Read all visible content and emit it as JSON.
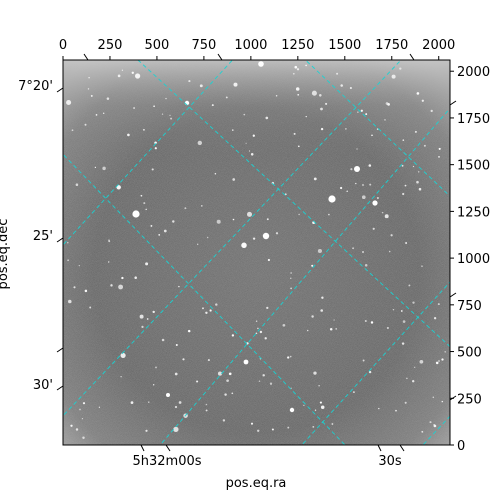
{
  "chart_data": {
    "type": "image",
    "pixel_axes": {
      "x_ticks": [
        0,
        250,
        500,
        750,
        1000,
        1250,
        1500,
        1750,
        2000
      ],
      "y_ticks": [
        0,
        250,
        500,
        750,
        1000,
        1250,
        1500,
        1750,
        2000
      ],
      "xlim": [
        0,
        2060
      ],
      "ylim": [
        0,
        2060
      ]
    },
    "world_axes": {
      "xlabel": "pos.eq.ra",
      "ylabel": "pos.eq.dec",
      "ra_tick_labels": [
        "5h32m00s",
        "30s"
      ],
      "dec_tick_labels": [
        "7°20'",
        "25'",
        "30'"
      ]
    },
    "grid_color": "#19d3d3",
    "image_colormap": "gray"
  }
}
